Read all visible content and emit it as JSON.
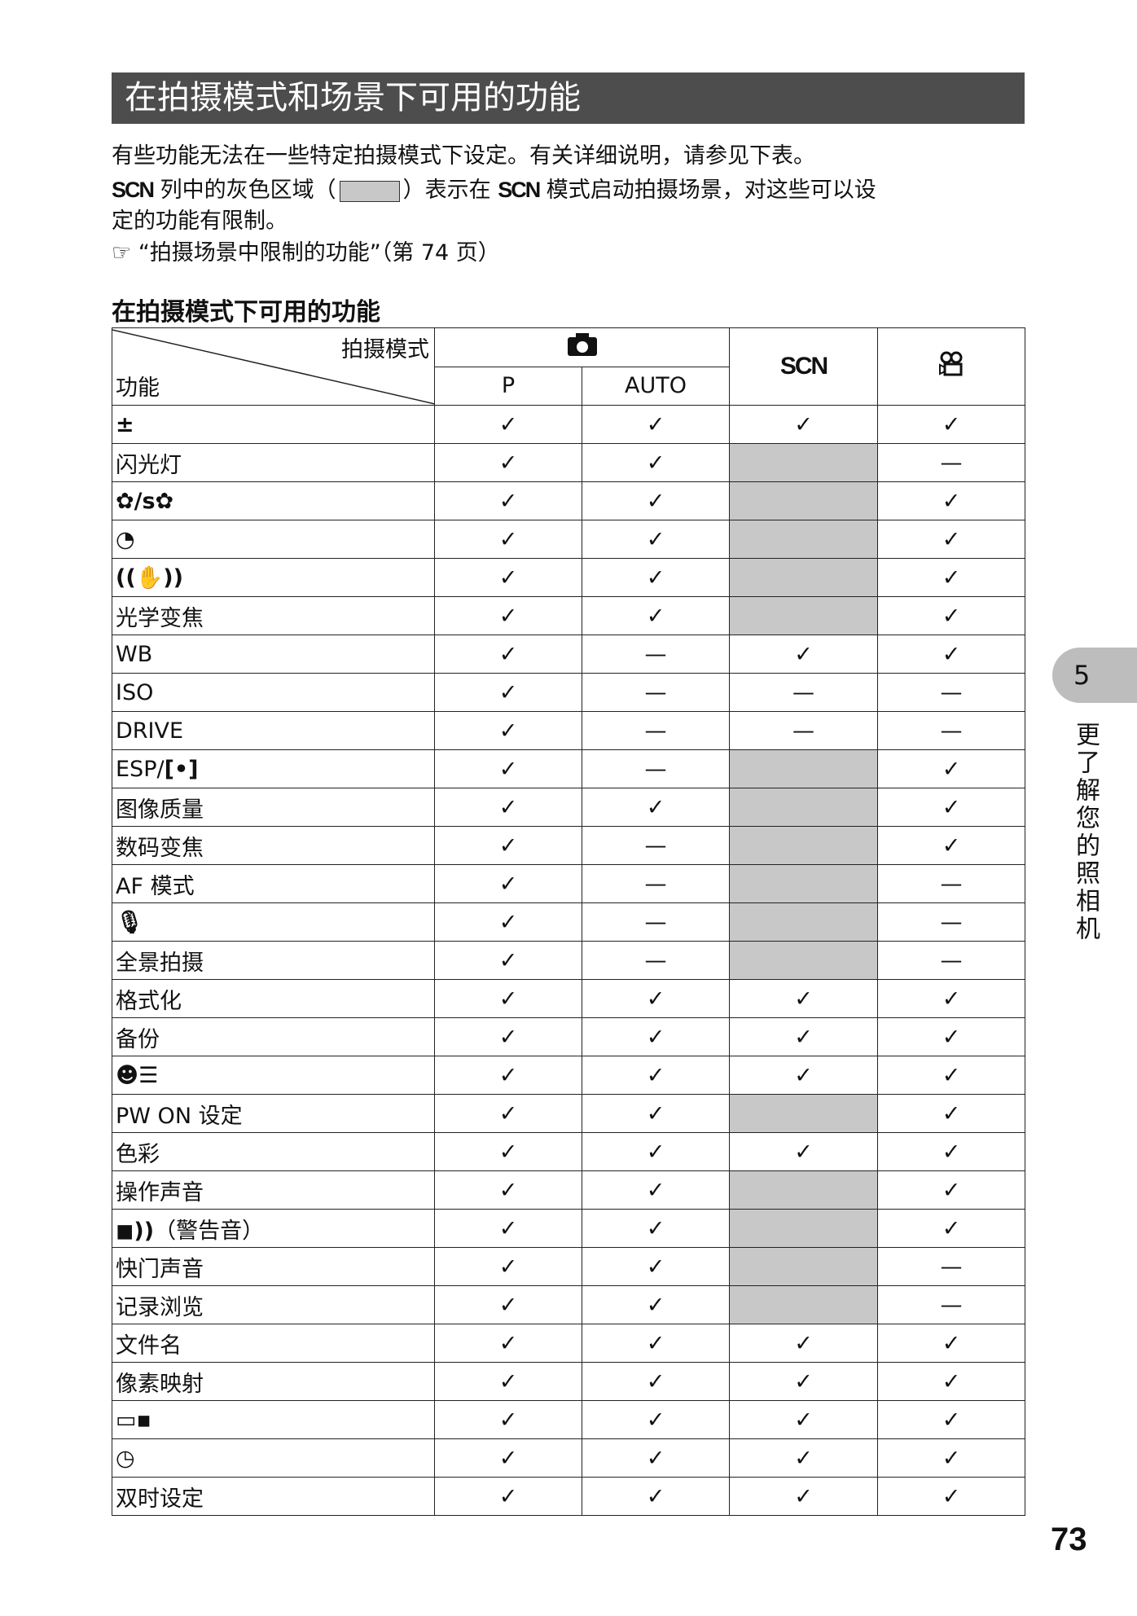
{
  "title": "在拍摄模式和场景下可用的功能",
  "intro": {
    "line1": "有些功能无法在一些特定拍摄模式下设定。有关详细说明，请参见下表。",
    "scn_label": "SCN",
    "line2a": " 列中的灰色区域（",
    "line2b": "）表示在 ",
    "line2c": " 模式启动拍摄场景，对这些可以设",
    "line3": "定的功能有限制。",
    "ref_icon": "pointing-hand-icon",
    "ref_text": "“拍摄场景中限制的功能”（第 74 页）"
  },
  "subtitle": "在拍摄模式下可用的功能",
  "table": {
    "mode_label": "拍摄模式",
    "func_label": "功能",
    "columns": {
      "camera_icon": "camera-icon",
      "p": "P",
      "auto": "AUTO",
      "scn": "SCN",
      "movie_icon": "movie-icon"
    },
    "symbols": {
      "c": "✓",
      "d": "—",
      "g": ""
    },
    "gray_color": "#c8c8c8",
    "rows": [
      {
        "label": "",
        "icon": "exposure-compensation-icon",
        "glyph": "±",
        "v": [
          "c",
          "c",
          "c",
          "c"
        ]
      },
      {
        "label": "闪光灯",
        "v": [
          "c",
          "c",
          "g",
          "d"
        ]
      },
      {
        "label": "",
        "icon": "macro-supermacro-icon",
        "glyph": "✿/s✿",
        "v": [
          "c",
          "c",
          "g",
          "c"
        ]
      },
      {
        "label": "",
        "icon": "self-timer-icon",
        "glyph": "◔",
        "v": [
          "c",
          "c",
          "g",
          "c"
        ]
      },
      {
        "label": "",
        "icon": "image-stabilizer-icon",
        "glyph": "((✋))",
        "v": [
          "c",
          "c",
          "g",
          "c"
        ]
      },
      {
        "label": "光学变焦",
        "v": [
          "c",
          "c",
          "g",
          "c"
        ]
      },
      {
        "label": "WB",
        "v": [
          "c",
          "d",
          "c",
          "c"
        ]
      },
      {
        "label": "ISO",
        "v": [
          "c",
          "d",
          "d",
          "d"
        ]
      },
      {
        "label": "DRIVE",
        "v": [
          "c",
          "d",
          "d",
          "d"
        ]
      },
      {
        "label": "ESP/",
        "icon": "spot-metering-icon",
        "glyph": "[•]",
        "v": [
          "c",
          "d",
          "g",
          "c"
        ]
      },
      {
        "label": "图像质量",
        "v": [
          "c",
          "c",
          "g",
          "c"
        ]
      },
      {
        "label": "数码变焦",
        "v": [
          "c",
          "d",
          "g",
          "c"
        ]
      },
      {
        "label": "AF 模式",
        "v": [
          "c",
          "d",
          "g",
          "d"
        ]
      },
      {
        "label": "",
        "icon": "microphone-icon",
        "glyph": "🎙",
        "v": [
          "c",
          "d",
          "g",
          "d"
        ]
      },
      {
        "label": "全景拍摄",
        "v": [
          "c",
          "d",
          "g",
          "d"
        ]
      },
      {
        "label": "格式化",
        "v": [
          "c",
          "c",
          "c",
          "c"
        ]
      },
      {
        "label": "备份",
        "v": [
          "c",
          "c",
          "c",
          "c"
        ]
      },
      {
        "label": "",
        "icon": "language-icon",
        "glyph": "☻☰",
        "v": [
          "c",
          "c",
          "c",
          "c"
        ]
      },
      {
        "label": "PW ON 设定",
        "v": [
          "c",
          "c",
          "g",
          "c"
        ]
      },
      {
        "label": "色彩",
        "v": [
          "c",
          "c",
          "c",
          "c"
        ]
      },
      {
        "label": "操作声音",
        "v": [
          "c",
          "c",
          "g",
          "c"
        ]
      },
      {
        "label": "（警告音）",
        "icon": "beep-icon",
        "glyph": "◼))",
        "v": [
          "c",
          "c",
          "g",
          "c"
        ]
      },
      {
        "label": "快门声音",
        "v": [
          "c",
          "c",
          "g",
          "d"
        ]
      },
      {
        "label": "记录浏览",
        "v": [
          "c",
          "c",
          "g",
          "d"
        ]
      },
      {
        "label": "文件名",
        "v": [
          "c",
          "c",
          "c",
          "c"
        ]
      },
      {
        "label": "像素映射",
        "v": [
          "c",
          "c",
          "c",
          "c"
        ]
      },
      {
        "label": "",
        "icon": "monitor-brightness-icon",
        "glyph": "▭▪",
        "v": [
          "c",
          "c",
          "c",
          "c"
        ]
      },
      {
        "label": "",
        "icon": "clock-icon",
        "glyph": "◷",
        "v": [
          "c",
          "c",
          "c",
          "c"
        ]
      },
      {
        "label": "双时设定",
        "v": [
          "c",
          "c",
          "c",
          "c"
        ]
      }
    ]
  },
  "side_tab": {
    "chapter": "5",
    "text": "更了解您的照相机"
  },
  "page_number": "73"
}
